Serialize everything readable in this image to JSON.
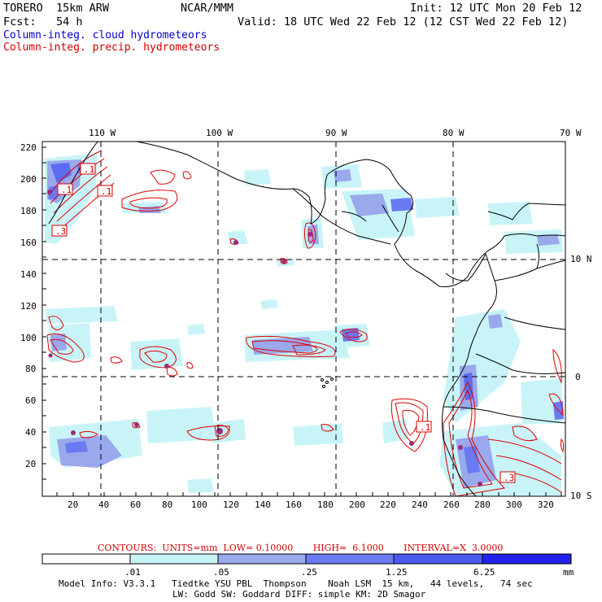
{
  "header": {
    "model": "TORERO  15km ARW",
    "center": "NCAR/MMM",
    "init": "Init: 12 UTC Mon 20 Feb 12",
    "forecast": "Fcst:   54 h",
    "valid": "Valid: 18 UTC Wed 22 Feb 12 (12 CST Wed 22 Feb 12)",
    "legend_cloud": "Column-integ. cloud hydrometeors",
    "legend_precip": "Column-integ. precip. hydrometeors"
  },
  "map": {
    "lon_labels": [
      "110 W",
      "100 W",
      "90 W",
      "80 W",
      "70 W"
    ],
    "lat_labels": [
      "10 N",
      "0",
      "10 S"
    ],
    "y_ticks": [
      "220",
      "200",
      "180",
      "160",
      "140",
      "120",
      "100",
      "80",
      "60",
      "40",
      "20"
    ],
    "x_ticks": [
      "20",
      "40",
      "60",
      "80",
      "100",
      "120",
      "140",
      "160",
      "180",
      "200",
      "220",
      "240",
      "260",
      "280",
      "300",
      "320"
    ],
    "contour_labels": [
      ".1",
      ".1",
      ".1",
      ".3",
      ".1",
      ".3"
    ],
    "colors": {
      "cloud_light": "#c8f4f8",
      "cloud_mid": "#9aa8ec",
      "cloud_dark": "#5b6cf0",
      "cloud_darkest": "#2222ee",
      "precip_contour": "#e00000",
      "coast": "#000000"
    }
  },
  "contours_note": {
    "text": "CONTOURS:  UNITS=mm  LOW= 0.10000       HIGH=  6.1000       INTERVAL=X  3.0000"
  },
  "colorbar": {
    "labels": [
      ".01",
      ".05",
      ".25",
      "1.25",
      "6.25"
    ],
    "unit": "mm",
    "colors": [
      "#ffffff",
      "#c8f4f8",
      "#9aa8ec",
      "#6a7af2",
      "#4a5af2",
      "#2222ee"
    ]
  },
  "model_info": {
    "line1": "Model Info: V3.3.1   Tiedtke YSU PBL  Thompson    Noah LSM  15 km,   44 levels,   74 sec",
    "line2": "LW: Godd SW: Goddard DIFF: simple KM: 2D Smagor"
  }
}
